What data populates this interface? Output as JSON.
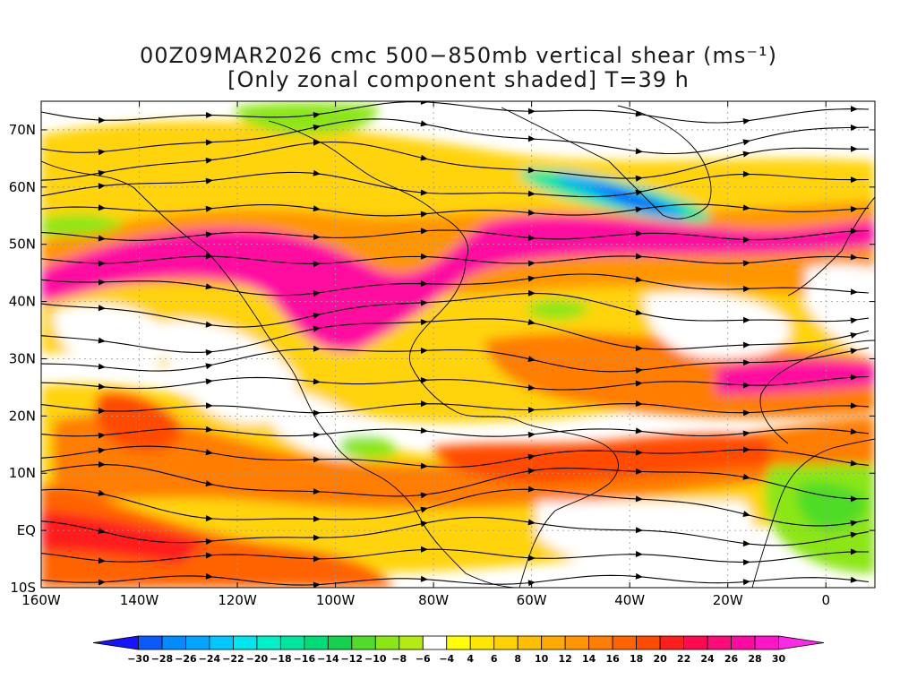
{
  "title": {
    "line1": "00Z09MAR2026 cmc 500−850mb vertical shear (ms⁻¹)",
    "line2": "[Only zonal component shaded] T=39 h"
  },
  "map": {
    "lon_range": [
      -160,
      10
    ],
    "lat_range": [
      -10,
      75
    ],
    "lon_ticks": [
      {
        "value": -160,
        "label": "160W"
      },
      {
        "value": -140,
        "label": "140W"
      },
      {
        "value": -120,
        "label": "120W"
      },
      {
        "value": -100,
        "label": "100W"
      },
      {
        "value": -80,
        "label": "80W"
      },
      {
        "value": -60,
        "label": "60W"
      },
      {
        "value": -40,
        "label": "40W"
      },
      {
        "value": -20,
        "label": "20W"
      },
      {
        "value": 0,
        "label": "0"
      }
    ],
    "lat_ticks": [
      {
        "value": -10,
        "label": "10S"
      },
      {
        "value": 0,
        "label": "EQ"
      },
      {
        "value": 10,
        "label": "10N"
      },
      {
        "value": 20,
        "label": "20N"
      },
      {
        "value": 30,
        "label": "30N"
      },
      {
        "value": 40,
        "label": "40N"
      },
      {
        "value": 50,
        "label": "50N"
      },
      {
        "value": 60,
        "label": "60N"
      },
      {
        "value": 70,
        "label": "70N"
      }
    ],
    "grid": true,
    "shading_field": "zonal component of 500−850mb vertical shear",
    "overlay": "streamlines"
  },
  "colorbar": {
    "labels": [
      "−30",
      "−28",
      "−26",
      "−24",
      "−22",
      "−20",
      "−18",
      "−16",
      "−14",
      "−12",
      "−10",
      "−8",
      "−6",
      "−4",
      "4",
      "6",
      "8",
      "10",
      "12",
      "14",
      "16",
      "18",
      "20",
      "22",
      "24",
      "26",
      "28",
      "30"
    ],
    "colors": [
      "#1414ff",
      "#0a5aff",
      "#008cff",
      "#00a5ff",
      "#00c8ff",
      "#00e6f0",
      "#00f0c8",
      "#00e6a0",
      "#00dc78",
      "#14d250",
      "#50dc28",
      "#8ce614",
      "#b4eb14",
      "#ffffff",
      "#ffff00",
      "#ffe600",
      "#ffd200",
      "#ffbe00",
      "#ffaa00",
      "#ff9600",
      "#ff7d00",
      "#ff6400",
      "#ff4b00",
      "#ff1e1e",
      "#ff0a50",
      "#ff0a78",
      "#ff0aa0",
      "#ff14c8",
      "#ff28e6"
    ]
  }
}
